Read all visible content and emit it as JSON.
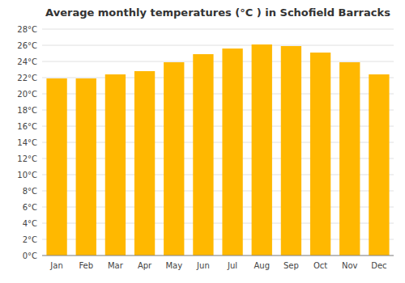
{
  "chart_data": {
    "type": "bar",
    "title": "Average monthly temperatures (°C ) in Schofield Barracks",
    "categories": [
      "Jan",
      "Feb",
      "Mar",
      "Apr",
      "May",
      "Jun",
      "Jul",
      "Aug",
      "Sep",
      "Oct",
      "Nov",
      "Dec"
    ],
    "values": [
      21.9,
      21.9,
      22.4,
      22.8,
      23.9,
      24.9,
      25.6,
      26.1,
      25.9,
      25.1,
      23.9,
      22.4
    ],
    "color": "#FFB800",
    "ylim": [
      0,
      28
    ],
    "yticks": [
      {
        "value": 0,
        "label": "0°C"
      },
      {
        "value": 2,
        "label": "2°C"
      },
      {
        "value": 4,
        "label": "4°C"
      },
      {
        "value": 6,
        "label": "6°C"
      },
      {
        "value": 8,
        "label": "8°C"
      },
      {
        "value": 10,
        "label": "10°C"
      },
      {
        "value": 12,
        "label": "12°C"
      },
      {
        "value": 14,
        "label": "14°C"
      },
      {
        "value": 16,
        "label": "16°C"
      },
      {
        "value": 18,
        "label": "18°C"
      },
      {
        "value": 20,
        "label": "20°C"
      },
      {
        "value": 22,
        "label": "22°C"
      },
      {
        "value": 24,
        "label": "24°C"
      },
      {
        "value": 26,
        "label": "26°C"
      },
      {
        "value": 28,
        "label": "28°C"
      }
    ],
    "grid": true
  }
}
